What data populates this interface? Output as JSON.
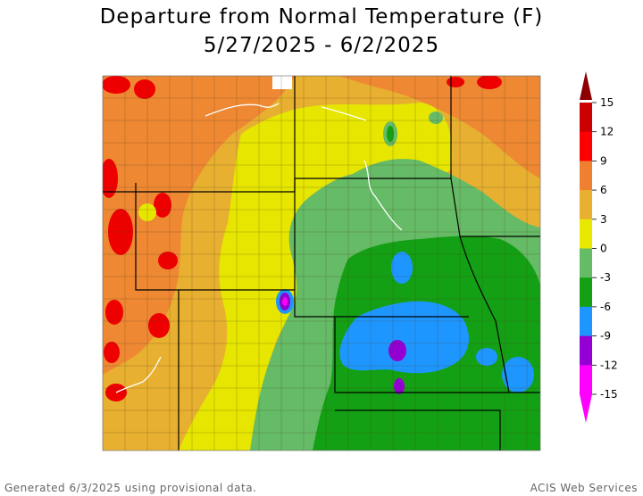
{
  "title": {
    "line1": "Departure from Normal Temperature (F)",
    "line2": "5/27/2025 - 6/2/2025"
  },
  "legend": {
    "labels": [
      "15",
      "12",
      "9",
      "6",
      "3",
      "0",
      "-3",
      "-6",
      "-9",
      "-12",
      "-15"
    ],
    "colors": [
      "#8b0000",
      "#cc0000",
      "#ff0000",
      "#ee8030",
      "#e8b030",
      "#e8e800",
      "#66bb66",
      "#14a014",
      "#1e96ff",
      "#9400d3",
      "#ff00ff"
    ]
  },
  "map": {
    "color_scale": {
      "dark_red": "#8b0000",
      "red": "#ee0000",
      "orange": "#ee8833",
      "light_orange": "#e8b030",
      "yellow": "#e6e600",
      "light_green": "#66bb66",
      "green": "#14a014",
      "blue": "#1e96ff",
      "purple": "#9400d3",
      "magenta": "#ff00ff"
    }
  },
  "footer": {
    "left": "Generated 6/3/2025 using provisional data.",
    "right": "ACIS Web Services"
  }
}
